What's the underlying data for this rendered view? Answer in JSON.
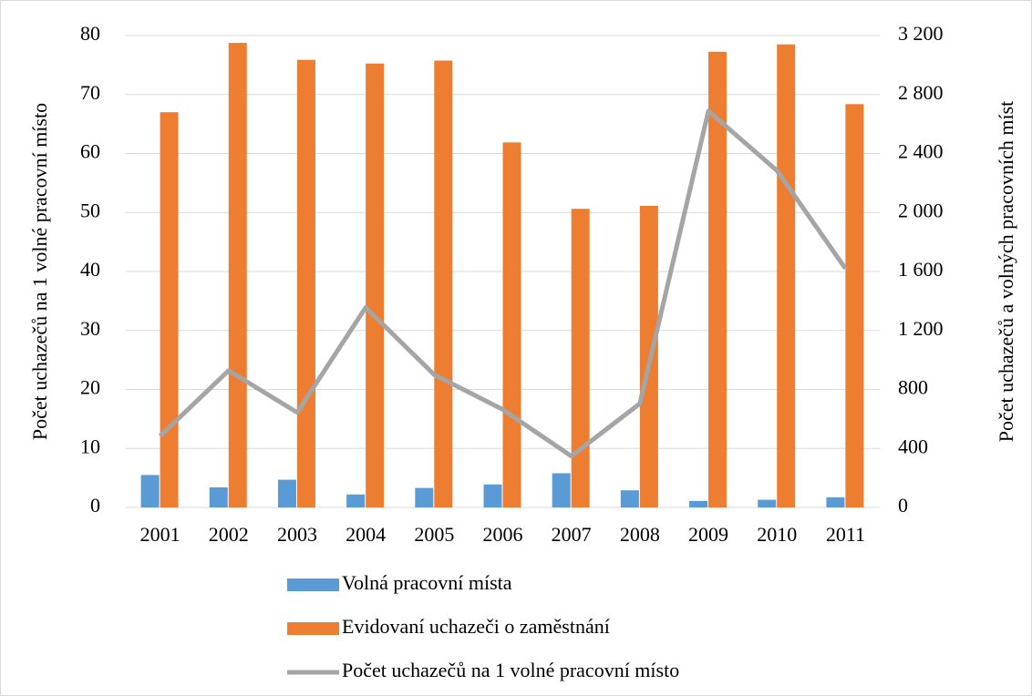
{
  "chart_data": {
    "type": "bar",
    "categories": [
      "2001",
      "2002",
      "2003",
      "2004",
      "2005",
      "2006",
      "2007",
      "2008",
      "2009",
      "2010",
      "2011"
    ],
    "series": [
      {
        "name": "Volná pracovní místa",
        "type": "bar",
        "axis": "y2",
        "color": "#5b9bd5",
        "values": [
          220,
          136,
          188,
          88,
          132,
          156,
          232,
          116,
          44,
          52,
          68
        ]
      },
      {
        "name": "Evidovaní uchazeči o zaměstnání",
        "type": "bar",
        "axis": "y2",
        "color": "#ed7d31",
        "values": [
          2680,
          3150,
          3035,
          3010,
          3030,
          2475,
          2025,
          2045,
          3090,
          3140,
          2735
        ]
      },
      {
        "name": "Počet uchazečů na 1 volné pracovní místo",
        "type": "line",
        "axis": "y",
        "color": "#a5a5a5",
        "values": [
          12.1,
          23.2,
          16.1,
          33.9,
          22.5,
          16.6,
          8.7,
          17.6,
          67.2,
          57.1,
          40.5
        ]
      }
    ],
    "y_label": "Počet  uchazečů na 1 volné pracovní místo",
    "y2_label": "Počet uchazečů a volných pracovních míst",
    "ylim": [
      0,
      80
    ],
    "yticks": [
      0,
      10,
      20,
      30,
      40,
      50,
      60,
      70,
      80
    ],
    "y2lim": [
      0,
      3200
    ],
    "y2ticks": [
      0,
      400,
      800,
      {
        "value": 1200,
        "label": "1 200"
      },
      {
        "value": 1600,
        "label": "1 600"
      },
      {
        "value": 2000,
        "label": "2 000"
      },
      {
        "value": 2400,
        "label": "2 400"
      },
      {
        "value": 2800,
        "label": "2 800"
      },
      {
        "value": 3200,
        "label": "3 200"
      }
    ],
    "grid": true,
    "legend": "bottom"
  }
}
